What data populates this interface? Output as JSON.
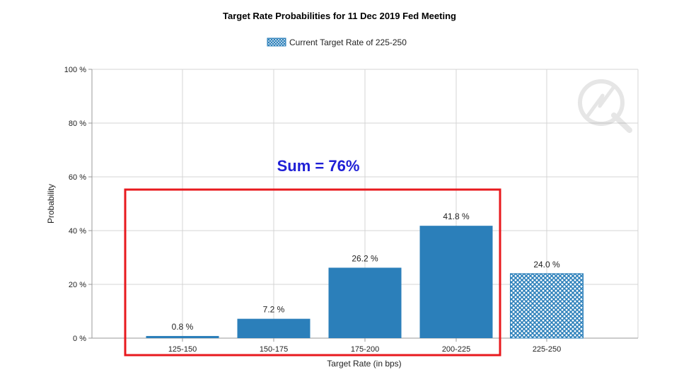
{
  "chart_data": {
    "type": "bar",
    "title": "Target Rate Probabilities for 11 Dec 2019 Fed Meeting",
    "legend": {
      "label": "Current Target Rate of 225-250",
      "placement": "top-center"
    },
    "xlabel": "Target Rate (in bps)",
    "ylabel": "Probability",
    "categories": [
      "125-150",
      "150-175",
      "175-200",
      "200-225",
      "225-250"
    ],
    "values": [
      0.8,
      7.2,
      26.2,
      41.8,
      24.0
    ],
    "data_labels": [
      "0.8 %",
      "7.2 %",
      "26.2 %",
      "41.8 %",
      "24.0 %"
    ],
    "highlight_category": "225-250",
    "ylim": [
      0,
      100
    ],
    "yticks": [
      0,
      20,
      40,
      60,
      80,
      100
    ],
    "ytick_labels": [
      "0 %",
      "20 %",
      "40 %",
      "60 %",
      "80 %",
      "100 %"
    ],
    "grid": true,
    "annotation": {
      "text": "Sum = 76%",
      "color": "#1f1fd6",
      "box_color": "#e8191e",
      "box_categories": [
        "125-150",
        "150-175",
        "175-200",
        "200-225"
      ]
    },
    "colors": {
      "bar": "#2b7fba",
      "highlight": "#2b7fba",
      "grid": "#d4d4d4",
      "axis": "#999999"
    }
  }
}
